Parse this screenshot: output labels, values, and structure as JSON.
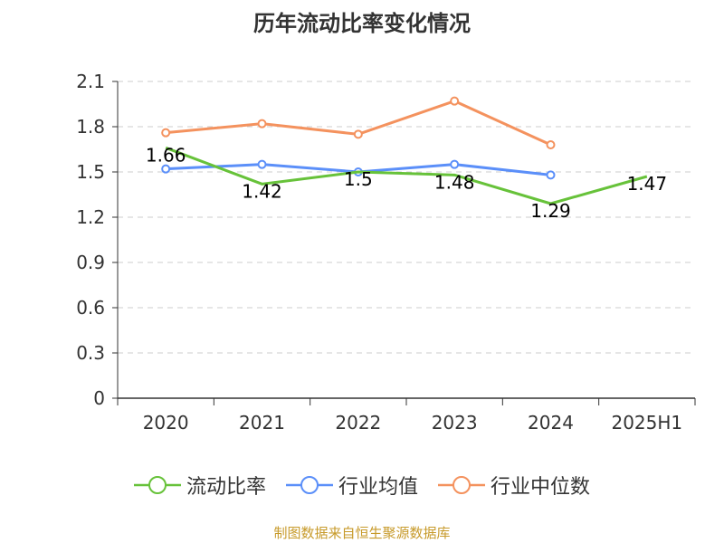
{
  "title": "历年流动比率变化情况",
  "source": "制图数据来自恒生聚源数据库",
  "colors": {
    "流动比率": "#67c23a",
    "行业均值": "#5b8ff9",
    "行业中位数": "#f4925e"
  },
  "chart_data": {
    "type": "line",
    "title": "历年流动比率变化情况",
    "categories": [
      "2020",
      "2021",
      "2022",
      "2023",
      "2024",
      "2025H1"
    ],
    "yticks": [
      "0",
      "0.3",
      "0.6",
      "0.9",
      "1.2",
      "1.5",
      "1.8",
      "2.1"
    ],
    "ylim": [
      0,
      2.1
    ],
    "grid": true,
    "legend_position": "bottom",
    "series": [
      {
        "name": "流动比率",
        "values": [
          1.66,
          1.42,
          1.5,
          1.48,
          1.29,
          1.47
        ],
        "labels": [
          "1.66",
          "1.42",
          "1.5",
          "1.48",
          "1.29",
          "1.47"
        ]
      },
      {
        "name": "行业均值",
        "values": [
          1.52,
          1.55,
          1.5,
          1.55,
          1.48,
          null
        ]
      },
      {
        "name": "行业中位数",
        "values": [
          1.76,
          1.82,
          1.75,
          1.97,
          1.68,
          null
        ]
      }
    ]
  }
}
